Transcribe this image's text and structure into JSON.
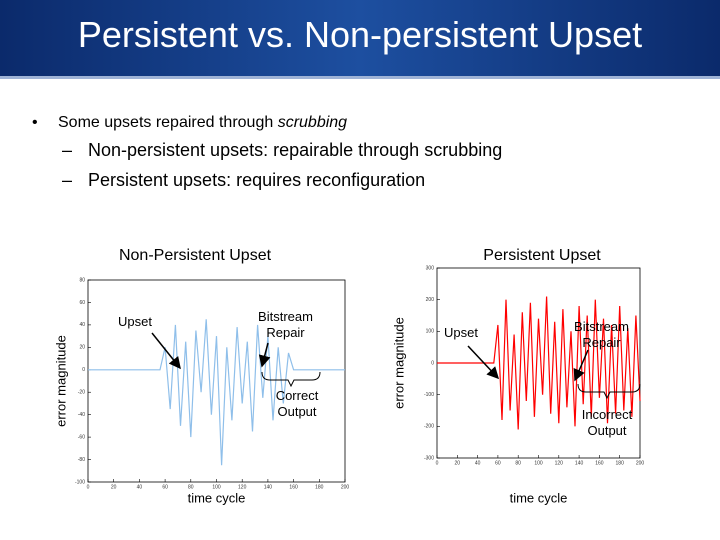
{
  "header": {
    "title": "Persistent vs. Non-persistent Upset"
  },
  "bullets": {
    "lead": "Some upsets repaired through ",
    "lead_emphasis": "scrubbing",
    "items": [
      "Non-persistent upsets: repairable through scrubbing",
      "Persistent upsets: requires reconfiguration"
    ]
  },
  "chart_data": [
    {
      "type": "line",
      "title": "Non-Persistent Upset",
      "x_label": "time cycle",
      "y_label": "error magnitude",
      "annotations": [
        "Upset",
        "Bitstream Repair",
        "Correct Output"
      ],
      "xlim": [
        0,
        200
      ],
      "xticks": [
        0,
        20,
        40,
        60,
        80,
        100,
        120,
        140,
        160,
        180,
        200
      ],
      "ylim": [
        -100,
        80
      ],
      "yticks": [
        -100,
        -80,
        -60,
        -40,
        -20,
        0,
        20,
        40,
        60,
        80
      ],
      "x": [
        0,
        4,
        8,
        12,
        16,
        20,
        24,
        28,
        32,
        36,
        40,
        44,
        48,
        52,
        56,
        60,
        64,
        68,
        72,
        76,
        80,
        84,
        88,
        92,
        96,
        100,
        104,
        108,
        112,
        116,
        120,
        124,
        128,
        132,
        136,
        140,
        144,
        148,
        152,
        156,
        160,
        164,
        168,
        172,
        176,
        180,
        184,
        188,
        192,
        196,
        200
      ],
      "series": [
        {
          "color": "#8fbfea",
          "values": [
            0,
            0,
            0,
            0,
            0,
            0,
            0,
            0,
            0,
            0,
            0,
            0,
            0,
            0,
            0,
            20,
            -35,
            40,
            -50,
            25,
            -60,
            35,
            -20,
            45,
            -40,
            30,
            -85,
            20,
            -45,
            38,
            -30,
            25,
            -55,
            40,
            -25,
            30,
            -45,
            20,
            -30,
            15,
            0,
            0,
            0,
            0,
            0,
            0,
            0,
            0,
            0,
            0,
            0
          ]
        }
      ]
    },
    {
      "type": "line",
      "title": "Persistent Upset",
      "x_label": "time cycle",
      "y_label": "error magnitude",
      "annotations": [
        "Upset",
        "Bitstream Repair",
        "Incorrect Output"
      ],
      "xlim": [
        0,
        200
      ],
      "xticks": [
        0,
        20,
        40,
        60,
        80,
        100,
        120,
        140,
        160,
        180,
        200
      ],
      "ylim": [
        -300,
        300
      ],
      "yticks": [
        -300,
        -200,
        -100,
        0,
        100,
        200,
        300
      ],
      "x": [
        0,
        4,
        8,
        12,
        16,
        20,
        24,
        28,
        32,
        36,
        40,
        44,
        48,
        52,
        56,
        60,
        64,
        68,
        72,
        76,
        80,
        84,
        88,
        92,
        96,
        100,
        104,
        108,
        112,
        116,
        120,
        124,
        128,
        132,
        136,
        140,
        144,
        148,
        152,
        156,
        160,
        164,
        168,
        172,
        176,
        180,
        184,
        188,
        192,
        196,
        200
      ],
      "series": [
        {
          "color": "#ff0000",
          "values": [
            0,
            0,
            0,
            0,
            0,
            0,
            0,
            0,
            0,
            0,
            0,
            0,
            0,
            0,
            0,
            120,
            -180,
            200,
            -150,
            90,
            -210,
            160,
            -120,
            190,
            -170,
            140,
            -100,
            210,
            -160,
            130,
            -190,
            170,
            -140,
            100,
            -200,
            180,
            -130,
            150,
            -170,
            200,
            -110,
            140,
            -190,
            120,
            -160,
            180,
            -150,
            110,
            -170,
            150,
            -120
          ]
        }
      ]
    }
  ]
}
